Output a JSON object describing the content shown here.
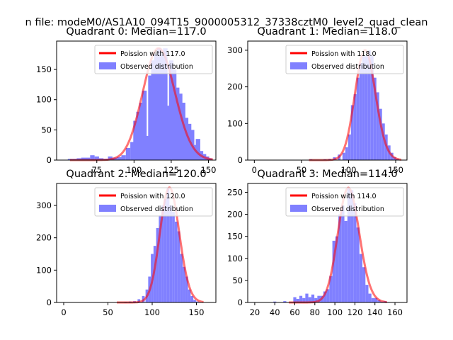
{
  "figure": {
    "suptitle": "n file: modeM0/AS1A10_094T15_9000005312_37338cztM0_level2_quad_clean"
  },
  "colors": {
    "fit_line": "#ff0000",
    "bars": "#8080ff"
  },
  "chart_data": [
    {
      "type": "bar",
      "title": "Quadrant 0: Median=117.0",
      "median": 117.0,
      "xlim": [
        48,
        155
      ],
      "ylim": [
        0,
        197
      ],
      "xticks": [
        75,
        100,
        125,
        150
      ],
      "yticks": [
        0,
        50,
        100,
        150
      ],
      "legend": {
        "placement": "top-right",
        "entries": [
          "Poission with 117.0",
          "Observed distribution"
        ]
      },
      "hist_x": [
        57,
        60,
        63,
        66,
        69,
        72,
        75,
        78,
        81,
        84,
        87,
        90,
        93,
        96,
        99,
        101,
        103,
        105,
        107,
        109,
        111,
        113,
        115,
        117,
        119,
        121,
        123,
        125,
        127,
        129,
        131,
        133,
        135,
        137,
        139,
        141,
        143,
        145,
        147,
        149,
        151
      ],
      "hist_y": [
        2,
        2,
        3,
        4,
        4,
        8,
        6,
        3,
        2,
        6,
        4,
        5,
        8,
        20,
        30,
        65,
        80,
        95,
        115,
        40,
        140,
        165,
        175,
        185,
        175,
        185,
        90,
        165,
        150,
        120,
        110,
        95,
        70,
        60,
        50,
        25,
        35,
        15,
        10,
        6,
        3
      ]
    },
    {
      "type": "bar",
      "title": "Quadrant 1: Median=118.0",
      "median": 118.0,
      "xlim": [
        -7,
        162
      ],
      "ylim": [
        0,
        325
      ],
      "xticks": [
        0,
        50,
        100,
        150
      ],
      "yticks": [
        0,
        100,
        200,
        300
      ],
      "legend": {
        "placement": "top-right",
        "entries": [
          "Poission with 118.0",
          "Observed distribution"
        ]
      },
      "hist_x": [
        40,
        60,
        75,
        80,
        85,
        90,
        95,
        98,
        101,
        104,
        107,
        110,
        113,
        116,
        119,
        122,
        125,
        128,
        131,
        134,
        137,
        140,
        143,
        146,
        149,
        152
      ],
      "hist_y": [
        1,
        2,
        2,
        3,
        8,
        15,
        20,
        35,
        70,
        150,
        180,
        225,
        265,
        285,
        285,
        300,
        285,
        225,
        185,
        140,
        100,
        70,
        40,
        20,
        8,
        3
      ]
    },
    {
      "type": "bar",
      "title": "Quadrant 2: Median=120.0",
      "median": 120.0,
      "xlim": [
        -8,
        172
      ],
      "ylim": [
        0,
        368
      ],
      "xticks": [
        0,
        50,
        100,
        150
      ],
      "yticks": [
        0,
        100,
        200,
        300
      ],
      "legend": {
        "placement": "top-right",
        "entries": [
          "Poission with 120.0",
          "Observed distribution"
        ]
      },
      "hist_x": [
        60,
        70,
        75,
        80,
        85,
        90,
        94,
        97,
        100,
        103,
        106,
        109,
        112,
        115,
        118,
        121,
        124,
        127,
        130,
        133,
        136,
        139,
        142,
        145,
        148,
        151
      ],
      "hist_y": [
        1,
        2,
        3,
        4,
        10,
        20,
        40,
        80,
        150,
        175,
        230,
        270,
        300,
        320,
        355,
        300,
        280,
        250,
        220,
        150,
        110,
        80,
        40,
        20,
        8,
        3
      ]
    },
    {
      "type": "bar",
      "title": "Quadrant 3: Median=114.0",
      "median": 114.0,
      "xlim": [
        13,
        172
      ],
      "ylim": [
        0,
        270
      ],
      "xticks": [
        20,
        40,
        60,
        80,
        100,
        120,
        140,
        160
      ],
      "yticks": [
        0,
        50,
        100,
        150,
        200,
        250
      ],
      "legend": {
        "placement": "top-right",
        "entries": [
          "Poission with 114.0",
          "Observed distribution"
        ]
      },
      "hist_x": [
        40,
        50,
        60,
        63,
        66,
        69,
        72,
        75,
        78,
        81,
        84,
        87,
        90,
        93,
        96,
        99,
        102,
        105,
        108,
        111,
        114,
        117,
        120,
        123,
        126,
        129,
        132,
        135,
        138,
        141,
        144,
        147,
        150,
        153
      ],
      "hist_y": [
        2,
        3,
        12,
        8,
        15,
        10,
        20,
        12,
        18,
        10,
        15,
        15,
        25,
        30,
        60,
        140,
        150,
        200,
        220,
        185,
        260,
        255,
        225,
        170,
        110,
        80,
        40,
        20,
        10,
        10,
        5,
        2,
        3,
        1
      ]
    }
  ]
}
